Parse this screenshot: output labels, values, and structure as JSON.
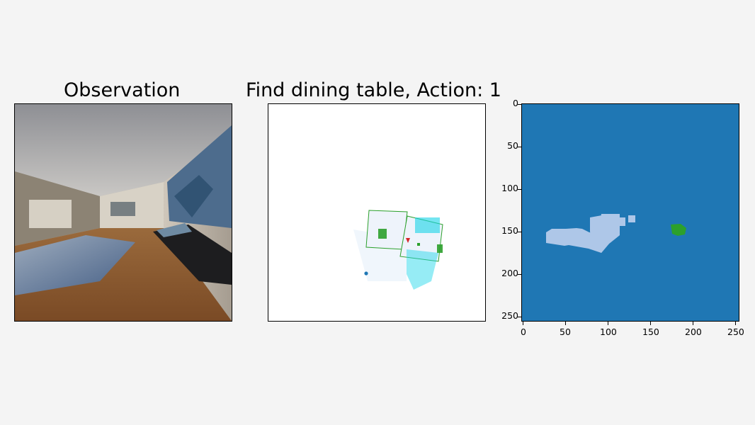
{
  "panels": {
    "observation": {
      "title": "Observation"
    },
    "map": {
      "title": "Find dining table, Action: 1"
    },
    "semantic": {
      "xticks": [
        "0",
        "50",
        "100",
        "150",
        "200",
        "250"
      ],
      "yticks": [
        "0",
        "50",
        "100",
        "150",
        "200",
        "250"
      ],
      "xlim": [
        0,
        256
      ],
      "ylim": [
        256,
        0
      ]
    }
  },
  "colors": {
    "background": "#f4f4f4",
    "semantic_bg": "#1f77b4",
    "floor_region": "#aec7e8",
    "target_region": "#2ca02c",
    "agent_marker": "#d62728",
    "explored_area": "#eef3fb",
    "cyan_points": "#17d4e8"
  }
}
